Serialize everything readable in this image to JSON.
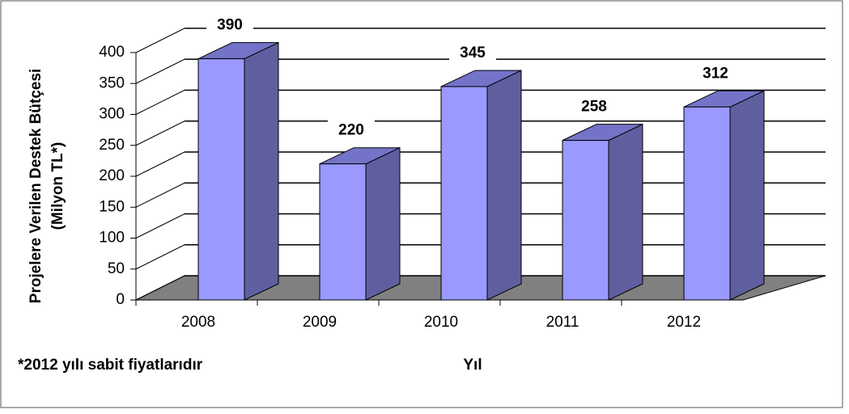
{
  "chart_data": {
    "type": "bar3d",
    "y_label": [
      "Projelere Verilen Destek Bütçesi",
      "(Milyon TL*)"
    ],
    "x_label": "Yıl",
    "note": "*2012 yılı  sabit fiyatlarıdır",
    "categories": [
      "2008",
      "2009",
      "2010",
      "2011",
      "2012"
    ],
    "values": [
      390,
      220,
      345,
      258,
      312
    ],
    "color": "#9999ff",
    "ylim": [
      0,
      400
    ],
    "yticks": [
      0,
      50,
      100,
      150,
      200,
      250,
      300,
      350,
      400
    ],
    "grid": true
  }
}
